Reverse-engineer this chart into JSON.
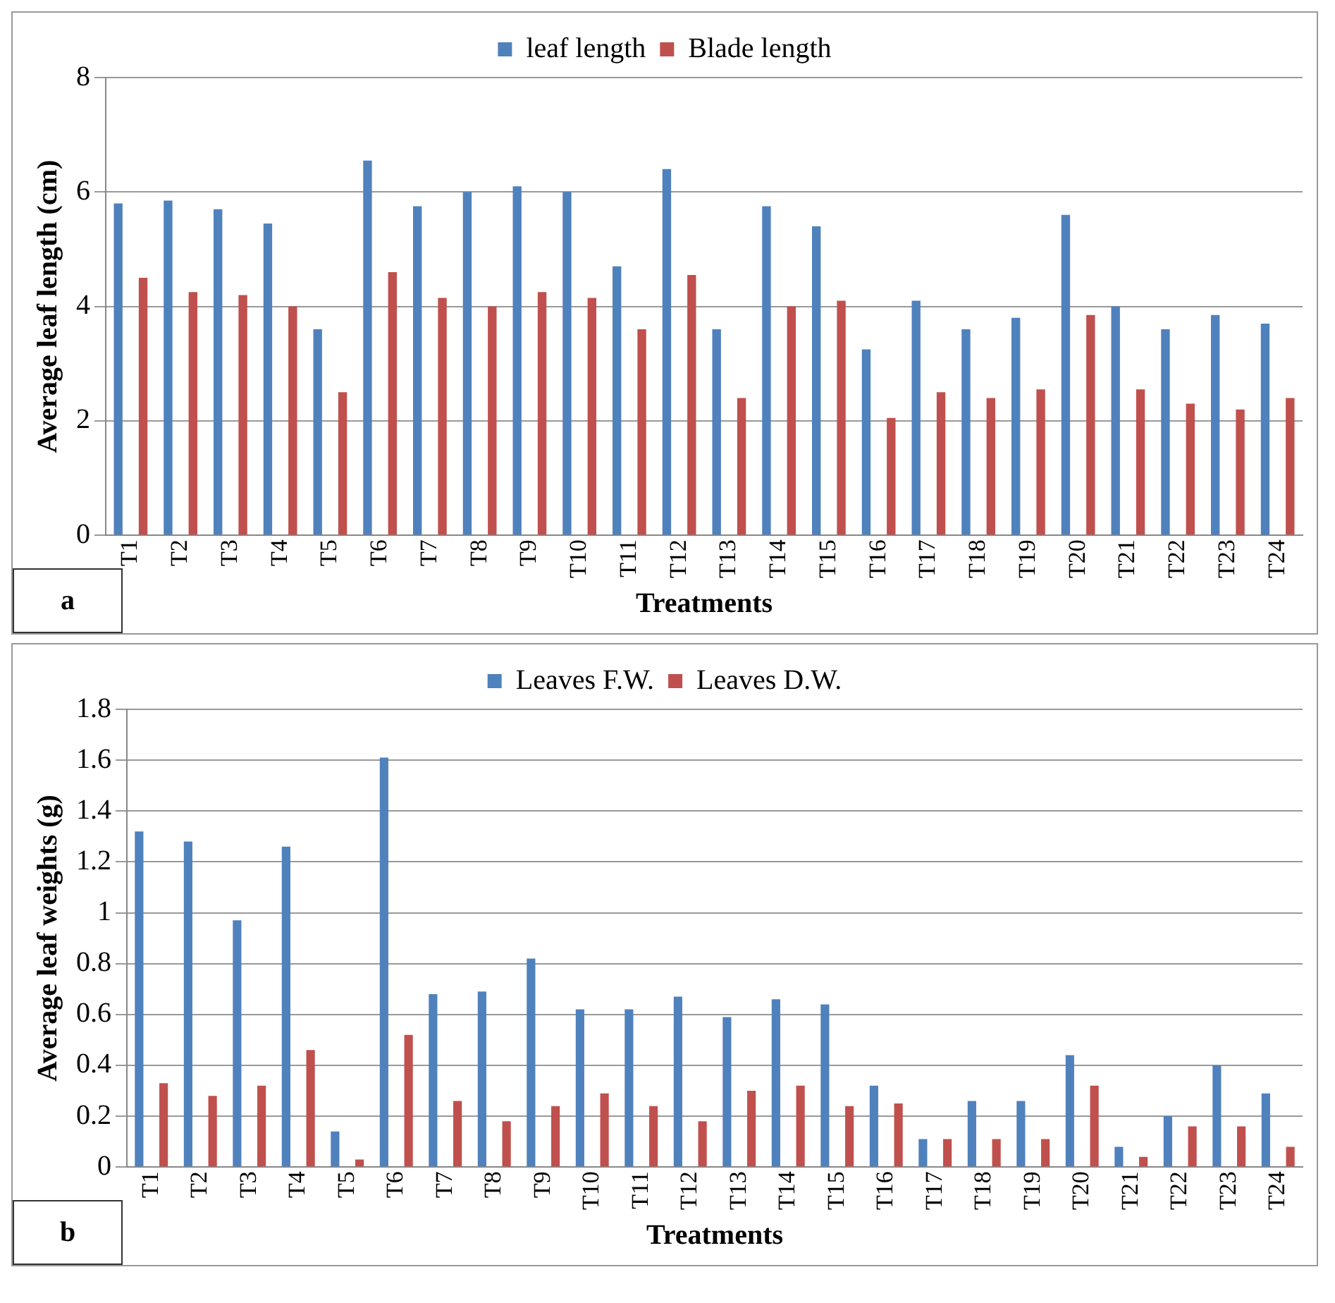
{
  "chart_data": [
    {
      "type": "bar",
      "xlabel": "Treatments",
      "ylabel": "Average leaf length (cm)",
      "annotations": [
        "a"
      ],
      "categories": [
        "T1",
        "T2",
        "T3",
        "T4",
        "T5",
        "T6",
        "T7",
        "T8",
        "T9",
        "T10",
        "T11",
        "T12",
        "T13",
        "T14",
        "T15",
        "T16",
        "T17",
        "T18",
        "T19",
        "T20",
        "T21",
        "T22",
        "T23",
        "T24"
      ],
      "series": [
        {
          "name": "leaf length",
          "color": "#4f81bd",
          "values": [
            5.8,
            5.85,
            5.7,
            5.45,
            3.6,
            6.55,
            5.75,
            6.0,
            6.1,
            6.0,
            4.7,
            6.4,
            3.6,
            5.75,
            5.4,
            3.25,
            4.1,
            3.6,
            3.8,
            5.6,
            4.0,
            3.6,
            3.85,
            3.7
          ]
        },
        {
          "name": "Blade length",
          "color": "#c0504d",
          "values": [
            4.5,
            4.25,
            4.2,
            4.0,
            2.5,
            4.6,
            4.15,
            4.0,
            4.25,
            4.15,
            3.6,
            4.55,
            2.4,
            4.0,
            4.1,
            2.05,
            2.5,
            2.4,
            2.55,
            3.85,
            2.55,
            2.3,
            2.2,
            2.4
          ]
        }
      ],
      "ylim": [
        0,
        8
      ],
      "yticks": [
        0,
        2,
        4,
        6,
        8
      ],
      "grid": "y",
      "legend": "top"
    },
    {
      "type": "bar",
      "xlabel": "Treatments",
      "ylabel": "Average leaf weights (g)",
      "annotations": [
        "b"
      ],
      "categories": [
        "T1",
        "T2",
        "T3",
        "T4",
        "T5",
        "T6",
        "T7",
        "T8",
        "T9",
        "T10",
        "T11",
        "T12",
        "T13",
        "T14",
        "T15",
        "T16",
        "T17",
        "T18",
        "T19",
        "T20",
        "T21",
        "T22",
        "T23",
        "T24"
      ],
      "series": [
        {
          "name": "Leaves F.W.",
          "color": "#4f81bd",
          "values": [
            1.32,
            1.28,
            0.97,
            1.26,
            0.14,
            1.61,
            0.68,
            0.69,
            0.82,
            0.62,
            0.62,
            0.67,
            0.59,
            0.66,
            0.64,
            0.32,
            0.11,
            0.26,
            0.26,
            0.44,
            0.08,
            0.2,
            0.4,
            0.29
          ]
        },
        {
          "name": "Leaves D.W.",
          "color": "#c0504d",
          "values": [
            0.33,
            0.28,
            0.32,
            0.46,
            0.03,
            0.52,
            0.26,
            0.18,
            0.24,
            0.29,
            0.24,
            0.18,
            0.3,
            0.32,
            0.24,
            0.25,
            0.11,
            0.11,
            0.11,
            0.32,
            0.04,
            0.16,
            0.16,
            0.08
          ]
        }
      ],
      "ylim": [
        0,
        1.8
      ],
      "yticks": [
        0,
        0.2,
        0.4,
        0.6,
        0.8,
        1,
        1.2,
        1.4,
        1.6,
        1.8
      ],
      "grid": "y",
      "legend": "top"
    }
  ]
}
